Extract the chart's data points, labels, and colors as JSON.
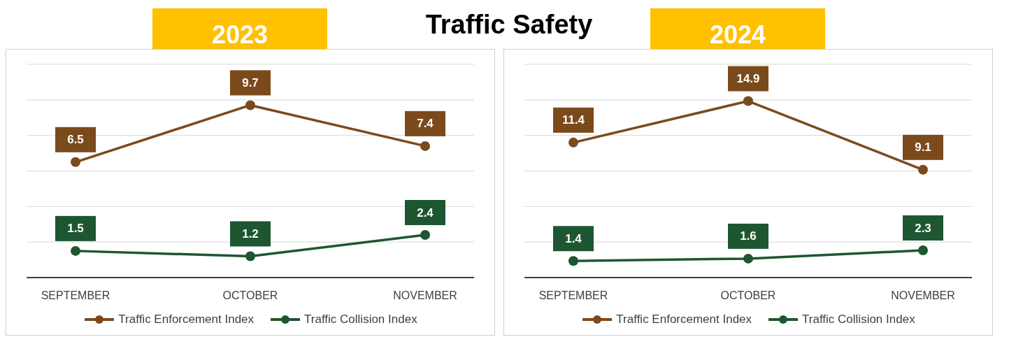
{
  "chart_data": [
    {
      "type": "line",
      "title": "2023",
      "annotations": [
        "Traffic Safety"
      ],
      "categories": [
        "SEPTEMBER",
        "OCTOBER",
        "NOVEMBER"
      ],
      "series": [
        {
          "name": "Traffic Enforcement Index",
          "color": "#7b4a1b",
          "values": [
            6.5,
            9.7,
            7.4
          ]
        },
        {
          "name": "Traffic Collision Index",
          "color": "#1e5631",
          "values": [
            1.5,
            1.2,
            2.4
          ]
        }
      ],
      "grid": "y",
      "legend": "bottom",
      "marker": "circle",
      "data_labels": true,
      "tick_labels": "x"
    },
    {
      "type": "line",
      "title": "2024",
      "categories": [
        "SEPTEMBER",
        "OCTOBER",
        "NOVEMBER"
      ],
      "series": [
        {
          "name": "Traffic Enforcement Index",
          "color": "#7b4a1b",
          "values": [
            11.4,
            14.9,
            9.1
          ]
        },
        {
          "name": "Traffic Collision Index",
          "color": "#1e5631",
          "values": [
            1.4,
            1.6,
            2.3
          ]
        }
      ],
      "grid": "y",
      "legend": "bottom",
      "marker": "circle",
      "data_labels": true,
      "tick_labels": "x"
    }
  ]
}
